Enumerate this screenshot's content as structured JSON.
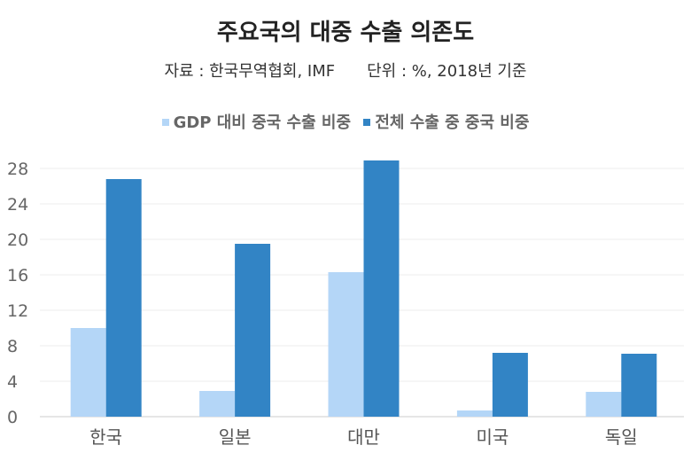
{
  "title": "주요국의 대중 수출 의존도",
  "source": "자료 : 한국무역협회, IMF",
  "unit": "단위 : %, 2018년 기준",
  "colors": {
    "series1": "#b4d6f7",
    "series2": "#3284c5",
    "grid": "#eeeeee",
    "axis": "#cccccc"
  },
  "chart_data": {
    "type": "bar",
    "title": "주요국의 대중 수출 의존도",
    "categories": [
      "한국",
      "일본",
      "대만",
      "미국",
      "독일"
    ],
    "series": [
      {
        "name": "GDP 대비 중국 수출 비중",
        "values": [
          10.0,
          2.9,
          16.3,
          0.7,
          2.8
        ]
      },
      {
        "name": "전체 수출 중 중국 비중",
        "values": [
          26.8,
          19.5,
          28.9,
          7.2,
          7.1
        ]
      }
    ],
    "yticks": [
      0,
      4,
      8,
      12,
      16,
      20,
      24,
      28
    ],
    "ylim": [
      0,
      28.9
    ],
    "xlabel": "",
    "ylabel": ""
  }
}
